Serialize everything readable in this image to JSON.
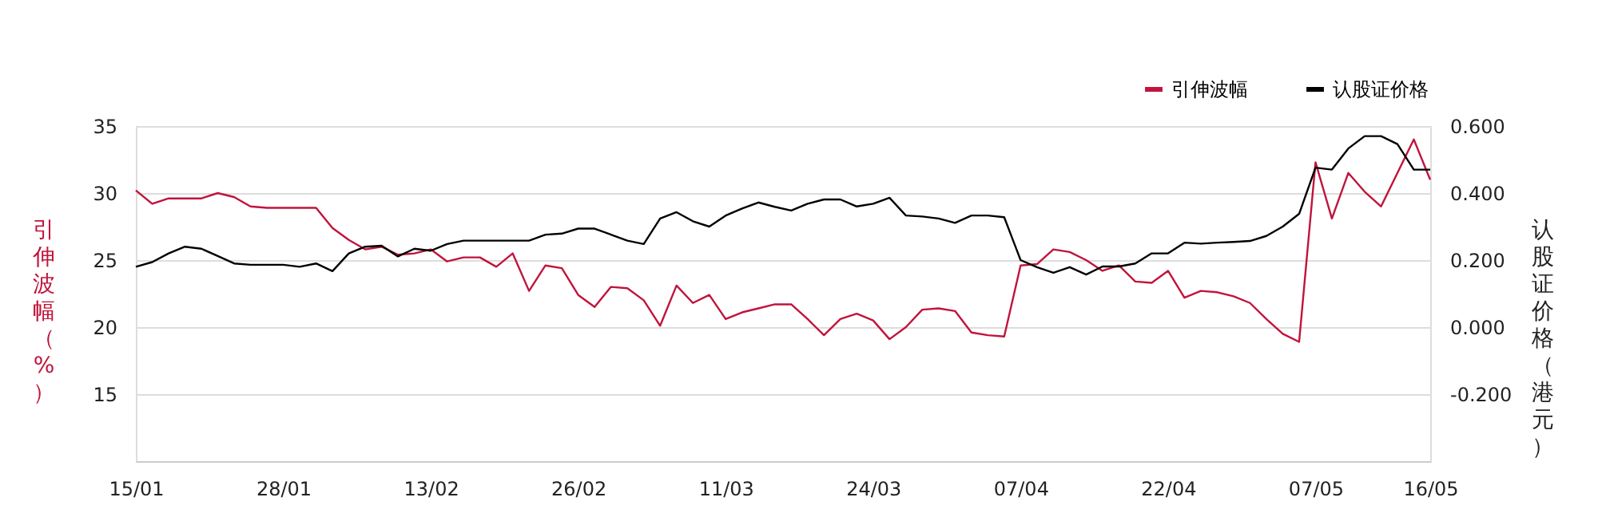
{
  "chart_data": {
    "type": "line",
    "ylabel": "引伸波幅（%）",
    "y2label": "认股证价格（港元）",
    "categories": [
      "15/01",
      null,
      null,
      null,
      null,
      null,
      null,
      null,
      null,
      "28/01",
      null,
      null,
      null,
      null,
      null,
      null,
      null,
      null,
      "13/02",
      null,
      null,
      null,
      null,
      null,
      null,
      null,
      null,
      "26/02",
      null,
      null,
      null,
      null,
      null,
      null,
      null,
      null,
      "11/03",
      null,
      null,
      null,
      null,
      null,
      null,
      null,
      null,
      "24/03",
      null,
      null,
      null,
      null,
      null,
      null,
      null,
      null,
      "07/04",
      null,
      null,
      null,
      null,
      null,
      null,
      null,
      null,
      "22/04",
      null,
      null,
      null,
      null,
      null,
      null,
      null,
      null,
      "07/05",
      null,
      null,
      null,
      null,
      null,
      null,
      "16/05"
    ],
    "series": [
      {
        "name": "引伸波幅",
        "color": "#c0143c",
        "values": [
          30.2,
          29.2,
          29.6,
          29.6,
          29.6,
          30.0,
          29.7,
          29.0,
          28.9,
          28.9,
          28.9,
          28.9,
          27.4,
          26.5,
          25.8,
          26.0,
          25.4,
          25.5,
          25.8,
          24.9,
          25.2,
          25.2,
          24.5,
          25.5,
          22.7,
          24.6,
          24.4,
          22.4,
          21.5,
          23.0,
          22.9,
          22.0,
          20.1,
          23.1,
          21.8,
          22.4,
          20.6,
          21.1,
          21.4,
          21.7,
          21.7,
          20.6,
          19.4,
          20.6,
          21.0,
          20.5,
          19.1,
          20.0,
          21.3,
          21.4,
          21.2,
          19.6,
          19.4,
          19.3,
          24.6,
          24.7,
          25.8,
          25.6,
          25.0,
          24.2,
          24.6,
          23.4,
          23.3,
          24.2,
          22.2,
          22.7,
          22.6,
          22.3,
          21.8,
          20.6,
          19.5,
          18.9,
          32.3,
          28.1,
          31.5,
          30.1,
          29.0,
          31.5,
          34.0,
          31.0
        ]
      },
      {
        "name": "认股证价格",
        "color": "#000000",
        "axis": "y2",
        "values": [
          0.18,
          0.194,
          0.22,
          0.24,
          0.234,
          0.212,
          0.19,
          0.186,
          0.186,
          0.186,
          0.18,
          0.19,
          0.167,
          0.22,
          0.24,
          0.243,
          0.211,
          0.234,
          0.228,
          0.248,
          0.258,
          0.258,
          0.258,
          0.258,
          0.258,
          0.276,
          0.279,
          0.294,
          0.294,
          0.276,
          0.258,
          0.248,
          0.324,
          0.343,
          0.316,
          0.3,
          0.333,
          0.354,
          0.372,
          0.359,
          0.348,
          0.368,
          0.381,
          0.381,
          0.36,
          0.368,
          0.386,
          0.333,
          0.33,
          0.324,
          0.311,
          0.333,
          0.333,
          0.328,
          0.2,
          0.179,
          0.162,
          0.179,
          0.157,
          0.181,
          0.181,
          0.19,
          0.22,
          0.22,
          0.252,
          0.249,
          0.252,
          0.254,
          0.257,
          0.272,
          0.3,
          0.338,
          0.476,
          0.47,
          0.533,
          0.57,
          0.57,
          0.546,
          0.47,
          0.47
        ]
      }
    ],
    "ylim": [
      10,
      35
    ],
    "yticks": [
      15,
      20,
      25,
      30,
      35
    ],
    "y2lim": [
      -0.4,
      0.6
    ],
    "y2ticks": [
      {
        "value": -0.2,
        "label": "-0.200"
      },
      {
        "value": 0,
        "label": "0.000"
      },
      {
        "value": 0.2,
        "label": "0.200"
      },
      {
        "value": 0.4,
        "label": "0.400"
      },
      {
        "value": 0.6,
        "label": "0.600"
      }
    ],
    "grid": "y",
    "legend": "top right",
    "marker": "none",
    "line_style": "solid"
  }
}
